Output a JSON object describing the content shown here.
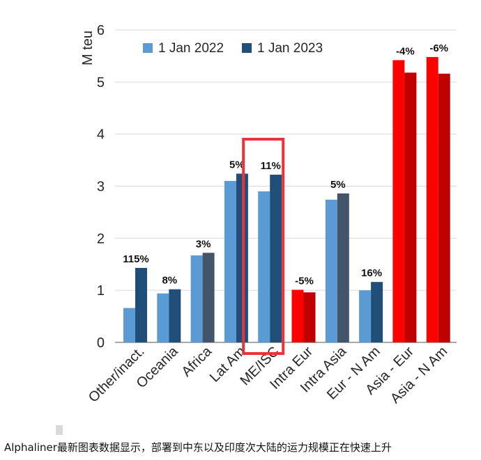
{
  "chart_data": {
    "type": "bar",
    "title": "",
    "xlabel": "",
    "ylabel": "M teu",
    "ylim": [
      0,
      6
    ],
    "yticks": [
      "0",
      "1",
      "2",
      "3",
      "4",
      "5",
      "6"
    ],
    "grid": true,
    "legend_position": "top-left",
    "categories": [
      "Other/inact.",
      "Oceania",
      "Africa",
      "Lat Am",
      "ME/ISC",
      "Intra Eur",
      "Intra Asia",
      "Eur - N Am",
      "Asia - Eur",
      "Asia - N Am"
    ],
    "series": [
      {
        "name": "1 Jan 2022",
        "values": [
          0.66,
          0.94,
          1.67,
          3.1,
          2.9,
          1.01,
          2.74,
          1.0,
          5.42,
          5.48
        ]
      },
      {
        "name": "1 Jan 2023",
        "values": [
          1.43,
          1.02,
          1.72,
          3.24,
          3.22,
          0.96,
          2.86,
          1.16,
          5.18,
          5.16
        ]
      }
    ],
    "data_labels": [
      "115%",
      "8%",
      "3%",
      "5%",
      "11%",
      "-5%",
      "5%",
      "16%",
      "-4%",
      "-6%"
    ],
    "highlighted_category": "ME/ISC",
    "colors": {
      "series_2022": "#5b9bd5",
      "series_2023": "#1f4e79",
      "series_2023_alt": "#44546a",
      "red_2022": "#ff0000",
      "red_2023": "#c00000",
      "highlight_box": "#e8343a",
      "grid": "#d9d9d9",
      "axis": "#8c8c8c"
    }
  },
  "caption": "Alphaliner最新图表数据显示，部署到中东以及印度次大陆的运力规模正在快速上升"
}
